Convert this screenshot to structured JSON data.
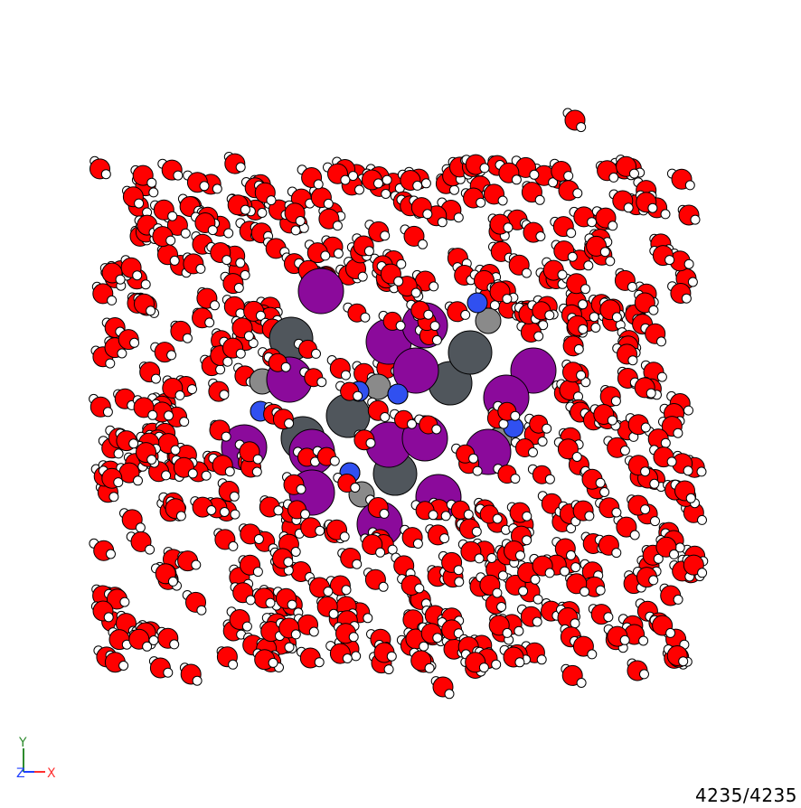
{
  "viewer": {
    "frame_counter": "4235/4235",
    "background": "#ffffff"
  },
  "axes": {
    "x_label": "X",
    "y_label": "Y",
    "z_label": "Z",
    "x_color": "#ff3030",
    "y_color": "#2e8b2e",
    "z_color": "#2040ff"
  },
  "atom_colors": {
    "oxygen": "#ff0000",
    "hydrogen": "#ffffff",
    "iodine": "#8b0a9b",
    "carbon_dark": "#50565c",
    "carbon_light": "#8a8a8a",
    "nitrogen": "#3050f0",
    "outline": "#000000"
  }
}
